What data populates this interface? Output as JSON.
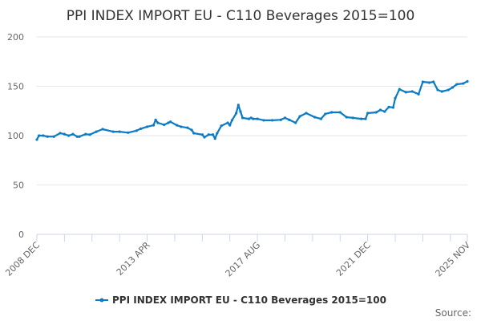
{
  "chart_data": {
    "type": "line",
    "title": "PPI INDEX IMPORT EU - C110 Beverages 2015=100",
    "xlabel": "",
    "ylabel": "",
    "ylim": [
      0,
      200
    ],
    "yticks": [
      "0",
      "50",
      "100",
      "150",
      "200"
    ],
    "xticks": [
      "2008 DEC",
      "2013 APR",
      "2017 AUG",
      "2021 DEC",
      "2025 NOV"
    ],
    "grid": true,
    "legend_position": "bottom",
    "color": "#0a7bc4",
    "series": [
      {
        "name": "PPI INDEX IMPORT EU - C110 Beverages 2015=100",
        "x": [
          "2008-12",
          "2009-01",
          "2009-03",
          "2009-05",
          "2009-08",
          "2009-11",
          "2010-01",
          "2010-03",
          "2010-05",
          "2010-07",
          "2010-08",
          "2010-11",
          "2011-01",
          "2011-04",
          "2011-07",
          "2011-12",
          "2012-03",
          "2012-07",
          "2012-11",
          "2013-01",
          "2013-04",
          "2013-07",
          "2013-08",
          "2013-09",
          "2013-12",
          "2014-02",
          "2014-03",
          "2014-06",
          "2014-08",
          "2014-11",
          "2015-01",
          "2015-02",
          "2015-06",
          "2015-07",
          "2015-09",
          "2015-11",
          "2015-12",
          "2016-01",
          "2016-03",
          "2016-06",
          "2016-07",
          "2016-08",
          "2016-10",
          "2016-11",
          "2016-12",
          "2017-01",
          "2017-04",
          "2017-05",
          "2017-06",
          "2017-08",
          "2017-11",
          "2018-03",
          "2018-07",
          "2018-09",
          "2018-11",
          "2019-02",
          "2019-04",
          "2019-07",
          "2019-11",
          "2020-02",
          "2020-04",
          "2020-07",
          "2020-11",
          "2021-02",
          "2021-05",
          "2021-09",
          "2021-11",
          "2021-12",
          "2022-04",
          "2022-06",
          "2022-08",
          "2022-10",
          "2022-12",
          "2023-01",
          "2023-03",
          "2023-06",
          "2023-09",
          "2023-12",
          "2024-02",
          "2024-05",
          "2024-07",
          "2024-09",
          "2024-11",
          "2025-02",
          "2025-04",
          "2025-06",
          "2025-09",
          "2025-11"
        ],
        "values": [
          96,
          100,
          100,
          99,
          99,
          102.5,
          101.5,
          100,
          101.5,
          99,
          99,
          101.5,
          101,
          104,
          106.5,
          104,
          104,
          103,
          105,
          107,
          109,
          110.5,
          116,
          113,
          111,
          113,
          114,
          110.5,
          109,
          108,
          105.7,
          102.4,
          101,
          98.4,
          101,
          101,
          97,
          102.4,
          110,
          113,
          110.5,
          115.5,
          122.8,
          131,
          124.4,
          118,
          117,
          118,
          117,
          117,
          115.5,
          115.5,
          116,
          118,
          116,
          113,
          119.5,
          122.8,
          118.7,
          117,
          122,
          123.6,
          123.6,
          118.7,
          118,
          117,
          117,
          122.8,
          123.6,
          126,
          124.4,
          129,
          128.5,
          138,
          147,
          144,
          144.7,
          142,
          154.5,
          153.7,
          154.5,
          146.3,
          144.7,
          146.3,
          148.8,
          152,
          152.8,
          155
        ]
      }
    ]
  },
  "source_label": "Source:"
}
